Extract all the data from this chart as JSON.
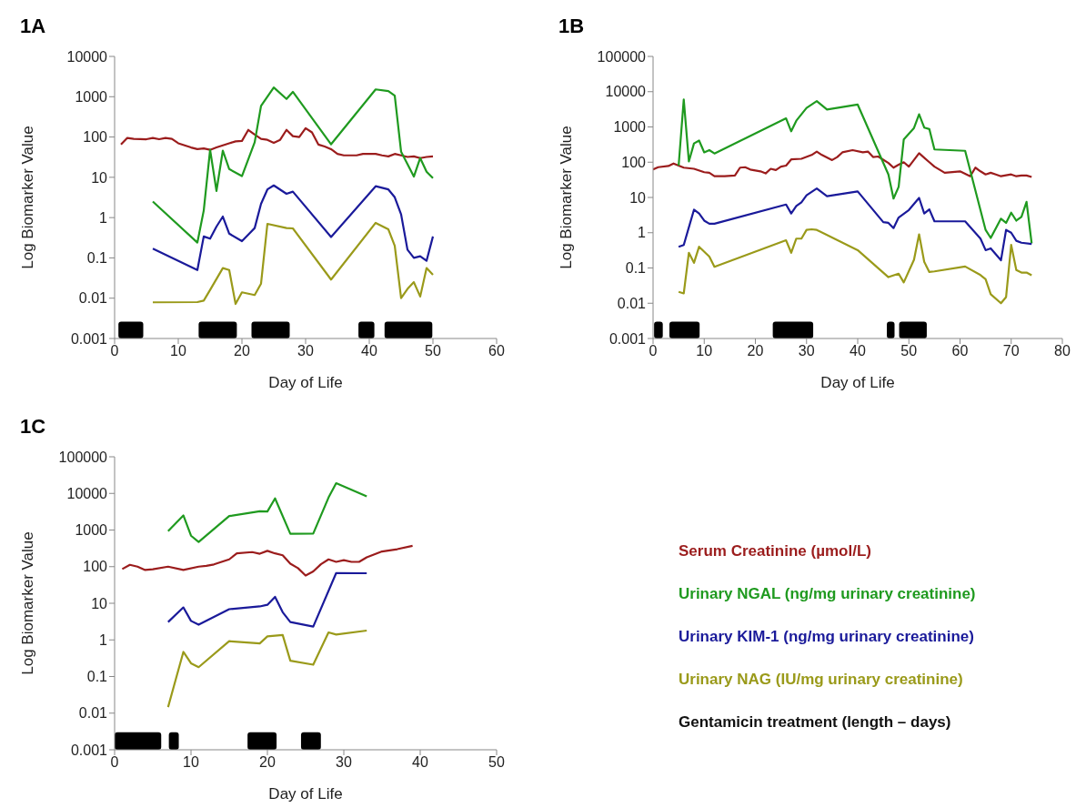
{
  "chart_data": [
    {
      "type": "line",
      "title": "1A",
      "xlabel": "Day of Life",
      "ylabel": "Log Biomarker Value",
      "log": "y",
      "xlim": [
        0,
        60
      ],
      "xticks": [
        0,
        10,
        20,
        30,
        40,
        50,
        60
      ],
      "ylim": [
        0.001,
        10000
      ],
      "yticks": [
        0.001,
        0.01,
        0.1,
        1,
        10,
        100,
        1000,
        10000
      ],
      "series": [
        {
          "color": "#9b1c1c",
          "x": [
            1,
            2,
            3,
            5,
            6,
            7,
            8,
            9,
            10,
            12,
            13,
            14,
            15,
            16,
            17,
            18,
            19,
            20,
            21,
            22,
            23,
            24,
            25,
            26,
            27,
            28,
            29,
            30,
            31,
            32,
            33,
            34,
            35,
            36,
            38,
            39,
            40,
            41,
            42,
            43,
            44,
            45,
            46,
            47,
            48,
            49,
            50
          ],
          "values": [
            65,
            95,
            90,
            88,
            95,
            88,
            95,
            90,
            70,
            55,
            50,
            52,
            48,
            55,
            62,
            70,
            78,
            80,
            150,
            115,
            90,
            85,
            72,
            85,
            150,
            105,
            100,
            165,
            130,
            65,
            58,
            50,
            38,
            35,
            35,
            38,
            38,
            38,
            35,
            33,
            38,
            35,
            32,
            33,
            30,
            32,
            33
          ]
        },
        {
          "color": "#1f9a1f",
          "x": [
            6,
            13,
            14,
            15,
            16,
            17,
            18,
            20,
            22,
            23,
            25,
            27,
            28,
            34,
            41,
            43,
            44,
            45,
            47,
            48,
            49,
            50
          ],
          "values": [
            2.5,
            0.24,
            1.5,
            48,
            4.6,
            46,
            16,
            10.7,
            74,
            590,
            1700,
            880,
            1320,
            66,
            1520,
            1380,
            1060,
            43,
            10.4,
            30,
            13.7,
            9.5
          ]
        },
        {
          "color": "#1a1a9a",
          "x": [
            6,
            13,
            14,
            15,
            16,
            17,
            18,
            20,
            22,
            23,
            24,
            25,
            27,
            28,
            34,
            41,
            43,
            44,
            45,
            46,
            47,
            48,
            49,
            50
          ],
          "values": [
            0.17,
            0.05,
            0.34,
            0.3,
            0.6,
            1.06,
            0.4,
            0.26,
            0.55,
            2.2,
            5,
            6.3,
            3.9,
            4.4,
            0.33,
            6,
            5,
            3.2,
            1.2,
            0.16,
            0.1,
            0.11,
            0.085,
            0.34
          ]
        },
        {
          "color": "#9a9a1a",
          "x": [
            6,
            13,
            14,
            15,
            17,
            18,
            19,
            20,
            22,
            23,
            24,
            27,
            28,
            34,
            41,
            43,
            44,
            45,
            46,
            47,
            48,
            49,
            50
          ],
          "values": [
            0.0079,
            0.008,
            0.0087,
            0.016,
            0.056,
            0.05,
            0.0072,
            0.014,
            0.012,
            0.023,
            0.7,
            0.55,
            0.54,
            0.029,
            0.74,
            0.51,
            0.2,
            0.01,
            0.017,
            0.025,
            0.011,
            0.056,
            0.038
          ]
        }
      ],
      "bands": [
        {
          "axis": "x",
          "from": 0.6,
          "to": 4.5,
          "color": "#000000"
        },
        {
          "axis": "x",
          "from": 13.2,
          "to": 19.2,
          "color": "#000000"
        },
        {
          "axis": "x",
          "from": 21.5,
          "to": 27.5,
          "color": "#000000"
        },
        {
          "axis": "x",
          "from": 38.3,
          "to": 40.8,
          "color": "#000000"
        },
        {
          "axis": "x",
          "from": 42.4,
          "to": 49.9,
          "color": "#000000"
        }
      ]
    },
    {
      "type": "line",
      "title": "1B",
      "xlabel": "Day of Life",
      "ylabel": "Log Biomarker Value",
      "log": "y",
      "xlim": [
        0,
        80
      ],
      "xticks": [
        0,
        10,
        20,
        30,
        40,
        50,
        60,
        70,
        80
      ],
      "ylim": [
        0.001,
        100000
      ],
      "yticks": [
        0.001,
        0.01,
        0.1,
        1,
        10,
        100,
        1000,
        10000,
        100000
      ],
      "series": [
        {
          "color": "#9b1c1c",
          "x": [
            0,
            1,
            3,
            4,
            5,
            6,
            8,
            10,
            11,
            12,
            14,
            16,
            17,
            18,
            19,
            21,
            22,
            23,
            24,
            25,
            26,
            27,
            29,
            31,
            32,
            33,
            35,
            36,
            37,
            39,
            41,
            42,
            43,
            44,
            46,
            47,
            48,
            49,
            50,
            52,
            54,
            55,
            57,
            60,
            62,
            63,
            64,
            65,
            66,
            67,
            68,
            70,
            71,
            72,
            73,
            74
          ],
          "values": [
            62,
            72,
            78,
            92,
            80,
            70,
            65,
            52,
            50,
            40,
            40,
            42,
            70,
            72,
            62,
            55,
            48,
            65,
            60,
            75,
            80,
            120,
            125,
            160,
            200,
            160,
            115,
            140,
            190,
            220,
            190,
            200,
            140,
            145,
            95,
            70,
            85,
            100,
            75,
            180,
            100,
            75,
            50,
            55,
            40,
            70,
            55,
            45,
            50,
            45,
            40,
            45,
            40,
            42,
            42,
            38
          ]
        },
        {
          "color": "#1f9a1f",
          "x": [
            5,
            6,
            7,
            8,
            9,
            10,
            11,
            12,
            26,
            27,
            28,
            30,
            32,
            34,
            40,
            46,
            47,
            48,
            49,
            51,
            52,
            53,
            54,
            55,
            61,
            65,
            66,
            68,
            69,
            70,
            71,
            72,
            73,
            74
          ],
          "values": [
            80,
            6000,
            105,
            340,
            410,
            190,
            220,
            177,
            1750,
            750,
            1500,
            3450,
            5400,
            3100,
            4300,
            45,
            9.3,
            20,
            440,
            930,
            2280,
            960,
            870,
            230,
            210,
            1.2,
            0.71,
            2.5,
            1.9,
            3.7,
            2.2,
            2.8,
            7.5,
            0.5
          ]
        },
        {
          "color": "#1a1a9a",
          "x": [
            5,
            6,
            8,
            9,
            10,
            11,
            12,
            26,
            27,
            28,
            29,
            30,
            32,
            34,
            40,
            45,
            46,
            47,
            48,
            50,
            52,
            53,
            54,
            55,
            61,
            64,
            65,
            66,
            68,
            69,
            70,
            71,
            72,
            74
          ],
          "values": [
            0.4,
            0.45,
            4.5,
            3.5,
            2.2,
            1.8,
            1.8,
            6.3,
            3.5,
            5.7,
            7.3,
            11.5,
            18,
            10.8,
            14.8,
            2,
            1.9,
            1.35,
            2.7,
            4.4,
            9.7,
            3.5,
            4.6,
            2.1,
            2.1,
            0.68,
            0.32,
            0.36,
            0.165,
            1.2,
            1,
            0.59,
            0.52,
            0.48
          ]
        },
        {
          "color": "#9a9a1a",
          "x": [
            5,
            6,
            7,
            8,
            9,
            11,
            12,
            26,
            27,
            28,
            29,
            30,
            31,
            32,
            40,
            46,
            48,
            49,
            51,
            52,
            53,
            54,
            55,
            61,
            64,
            65,
            66,
            68,
            69,
            70,
            71,
            72,
            73,
            74
          ],
          "values": [
            0.021,
            0.019,
            0.27,
            0.14,
            0.4,
            0.21,
            0.108,
            0.61,
            0.27,
            0.68,
            0.68,
            1.2,
            1.25,
            1.2,
            0.32,
            0.055,
            0.069,
            0.039,
            0.17,
            0.9,
            0.15,
            0.077,
            0.08,
            0.11,
            0.063,
            0.048,
            0.018,
            0.01,
            0.015,
            0.45,
            0.087,
            0.074,
            0.074,
            0.062
          ]
        }
      ],
      "bands": [
        {
          "axis": "x",
          "from": 0.2,
          "to": 1.9,
          "color": "#000000"
        },
        {
          "axis": "x",
          "from": 3.2,
          "to": 9.1,
          "color": "#000000"
        },
        {
          "axis": "x",
          "from": 23.4,
          "to": 31.3,
          "color": "#000000"
        },
        {
          "axis": "x",
          "from": 45.7,
          "to": 47.2,
          "color": "#000000"
        },
        {
          "axis": "x",
          "from": 48.1,
          "to": 53.5,
          "color": "#000000"
        }
      ]
    },
    {
      "type": "line",
      "title": "1C",
      "xlabel": "Day of Life",
      "ylabel": "Log Biomarker Value",
      "log": "y",
      "xlim": [
        0,
        50
      ],
      "xticks": [
        0,
        10,
        20,
        30,
        40,
        50
      ],
      "ylim": [
        0.001,
        100000
      ],
      "yticks": [
        0.001,
        0.01,
        0.1,
        1,
        10,
        100,
        1000,
        10000,
        100000
      ],
      "legend": "right",
      "series": [
        {
          "name": "Serum Creatinine (µmol/L)",
          "color": "#9b1c1c",
          "x": [
            1,
            2,
            3,
            4,
            5,
            7,
            9,
            11,
            12,
            13,
            15,
            16,
            18,
            19,
            20,
            21,
            22,
            23,
            24,
            25,
            26,
            27,
            28,
            29,
            30,
            31,
            32,
            33,
            35,
            37,
            39
          ],
          "values": [
            86,
            112,
            100,
            81,
            85,
            100,
            81,
            100,
            105,
            115,
            158,
            230,
            250,
            225,
            270,
            230,
            205,
            120,
            91,
            57,
            74,
            116,
            158,
            135,
            150,
            135,
            135,
            180,
            260,
            300,
            370
          ]
        },
        {
          "name": "Urinary NGAL (ng/mg urinary creatinine)",
          "color": "#1f9a1f",
          "x": [
            7,
            9,
            10,
            11,
            15,
            19,
            20,
            21,
            23,
            26,
            28,
            29,
            33
          ],
          "values": [
            930,
            2500,
            700,
            470,
            2400,
            3250,
            3200,
            7300,
            790,
            800,
            7700,
            19000,
            8300
          ]
        },
        {
          "name": "Urinary KIM-1 (ng/mg urinary creatinine)",
          "color": "#1a1a9a",
          "x": [
            7,
            9,
            10,
            11,
            15,
            19,
            20,
            21,
            22,
            23,
            26,
            29,
            33
          ],
          "values": [
            3.07,
            7.7,
            3.3,
            2.6,
            6.9,
            8.2,
            9.1,
            15,
            5.7,
            3.07,
            2.3,
            67,
            66
          ]
        },
        {
          "name": "Urinary NAG (IU/mg urinary creatinine)",
          "color": "#9a9a1a",
          "x": [
            7,
            9,
            10,
            11,
            15,
            19,
            20,
            22,
            23,
            26,
            28,
            29,
            33
          ],
          "values": [
            0.0146,
            0.47,
            0.23,
            0.18,
            0.92,
            0.8,
            1.25,
            1.36,
            0.27,
            0.21,
            1.6,
            1.4,
            1.8
          ]
        }
      ],
      "bands": [
        {
          "axis": "x",
          "from": 0,
          "to": 6.1,
          "color": "#000000"
        },
        {
          "axis": "x",
          "from": 7.1,
          "to": 8.4,
          "color": "#000000"
        },
        {
          "axis": "x",
          "from": 17.4,
          "to": 21.2,
          "color": "#000000"
        },
        {
          "axis": "x",
          "from": 24.4,
          "to": 27,
          "color": "#000000"
        }
      ],
      "annotations": [
        "Gentamicin treatment (length – days)"
      ]
    }
  ]
}
